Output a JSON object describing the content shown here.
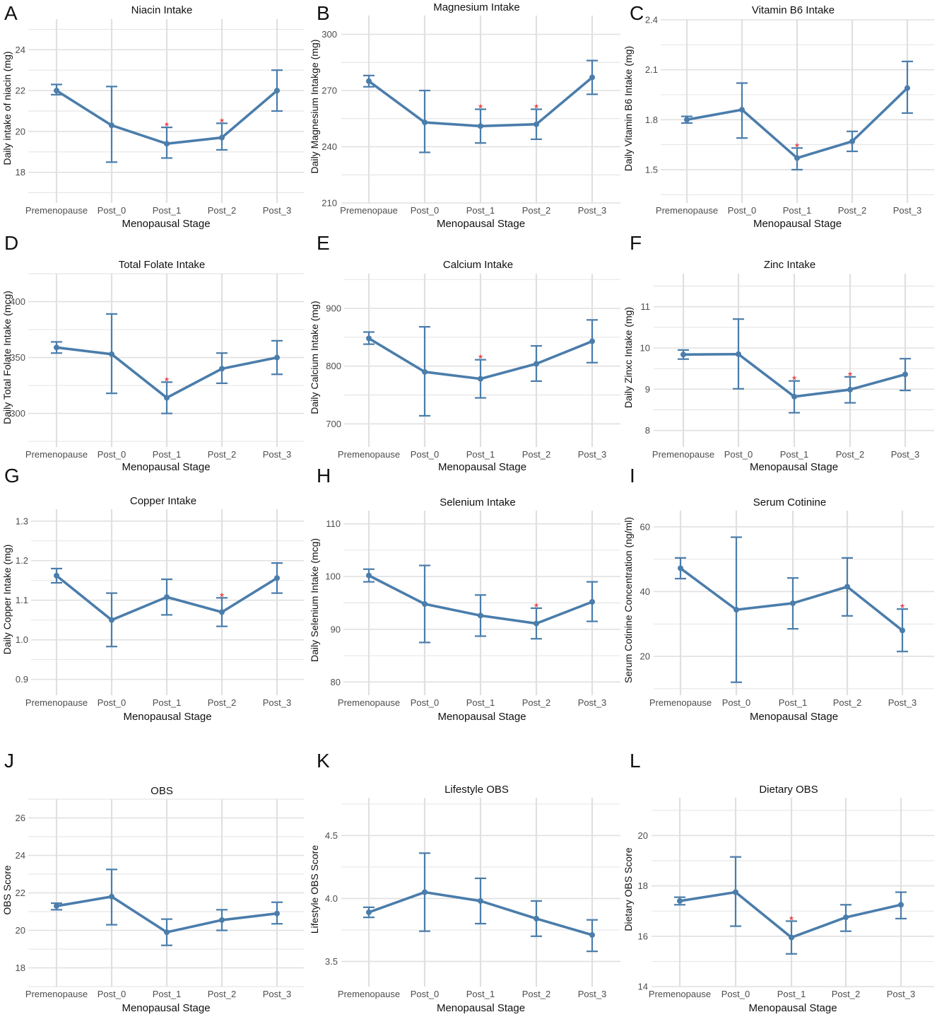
{
  "x_axis_title": "Menopausal Stage",
  "categories": [
    "Premenopause",
    "Post_0",
    "Post_1",
    "Post_2",
    "Post_3"
  ],
  "category_label_overrides": {
    "B": [
      "Premenopaue",
      "Post_0",
      "Post_1",
      "Post_2",
      "Post_3"
    ]
  },
  "series_color": "#4a7dab",
  "star_color": "#e8141b",
  "grid_color": "#e0e0e0",
  "star_symbol": "*",
  "chart_data": [
    {
      "id": "A",
      "type": "line",
      "letter": "A",
      "title": "Niacin Intake",
      "ylabel": "Daily intake of niacin (mg)",
      "xlabel": "Menopausal Stage",
      "ylim": [
        16.5,
        25.5
      ],
      "yticks": [
        18,
        20,
        22,
        24
      ],
      "values": [
        22.0,
        20.3,
        19.4,
        19.7,
        22.0
      ],
      "err_low": [
        21.8,
        18.5,
        18.7,
        19.1,
        21.0
      ],
      "err_high": [
        22.3,
        22.2,
        20.2,
        20.4,
        23.0
      ],
      "significant": [
        false,
        false,
        true,
        true,
        false
      ]
    },
    {
      "id": "B",
      "type": "line",
      "letter": "B",
      "title": "Magnesium Intake",
      "ylabel": "Daily Magnesium Intakge (mg)",
      "xlabel": "Menopausal Stage",
      "ylim": [
        210,
        310
      ],
      "yticks": [
        210,
        240,
        270,
        300
      ],
      "values": [
        275,
        253,
        251,
        252,
        277
      ],
      "err_low": [
        272,
        237,
        242,
        244,
        268
      ],
      "err_high": [
        278,
        270,
        260,
        260,
        286
      ],
      "significant": [
        false,
        false,
        true,
        true,
        false
      ]
    },
    {
      "id": "C",
      "type": "line",
      "letter": "C",
      "title": "Vitamin B6 Intake",
      "ylabel": "Daily Vitamin B6 Intake (mg)",
      "xlabel": "Menopausal Stage",
      "ylim": [
        1.3,
        2.4
      ],
      "yticks": [
        1.5,
        1.8,
        2.1,
        2.4
      ],
      "values": [
        1.8,
        1.86,
        1.57,
        1.67,
        1.99
      ],
      "err_low": [
        1.78,
        1.69,
        1.5,
        1.61,
        1.84
      ],
      "err_high": [
        1.82,
        2.02,
        1.63,
        1.73,
        2.15
      ],
      "significant": [
        false,
        false,
        true,
        false,
        false
      ]
    },
    {
      "id": "D",
      "type": "line",
      "letter": "D",
      "title": "Total Folate Intake",
      "ylabel": "Daily Total Folate Intake (mcg)",
      "xlabel": "Menopausal Stage",
      "ylim": [
        270,
        425
      ],
      "yticks": [
        300,
        350,
        400
      ],
      "values": [
        359,
        353,
        314,
        340,
        350
      ],
      "err_low": [
        354,
        318,
        300,
        327,
        335
      ],
      "err_high": [
        364,
        389,
        328,
        354,
        365
      ],
      "significant": [
        false,
        false,
        true,
        false,
        false
      ]
    },
    {
      "id": "E",
      "type": "line",
      "letter": "E",
      "title": "Calcium Intake",
      "ylabel": "Daily Calcium Intake (mg)",
      "xlabel": "Menopausal Stage",
      "ylim": [
        660,
        960
      ],
      "yticks": [
        700,
        800,
        900
      ],
      "values": [
        848,
        790,
        778,
        804,
        843
      ],
      "err_low": [
        838,
        714,
        745,
        774,
        806
      ],
      "err_high": [
        859,
        868,
        811,
        835,
        880
      ],
      "significant": [
        false,
        false,
        true,
        false,
        false
      ]
    },
    {
      "id": "F",
      "type": "line",
      "letter": "F",
      "title": "Zinc Intake",
      "ylabel": "Daily Zinxc Intake (mg)",
      "xlabel": "Menopausal Stage",
      "ylim": [
        7.6,
        11.8
      ],
      "yticks": [
        8,
        9,
        10,
        11
      ],
      "values": [
        9.84,
        9.85,
        8.82,
        8.99,
        9.36
      ],
      "err_low": [
        9.73,
        9.01,
        8.43,
        8.67,
        8.97
      ],
      "err_high": [
        9.95,
        10.7,
        9.2,
        9.3,
        9.74
      ],
      "significant": [
        false,
        false,
        true,
        true,
        false
      ]
    },
    {
      "id": "G",
      "type": "line",
      "letter": "G",
      "title": "Copper Intake",
      "ylabel": "Daily Copper Intake (mg)",
      "xlabel": "Menopausal Stage",
      "ylim": [
        0.86,
        1.33
      ],
      "yticks": [
        0.9,
        1.0,
        1.1,
        1.2,
        1.3
      ],
      "values": [
        1.162,
        1.05,
        1.108,
        1.07,
        1.156
      ],
      "err_low": [
        1.144,
        0.983,
        1.063,
        1.034,
        1.118
      ],
      "err_high": [
        1.18,
        1.118,
        1.153,
        1.106,
        1.194
      ],
      "significant": [
        false,
        false,
        false,
        true,
        false
      ]
    },
    {
      "id": "H",
      "type": "line",
      "letter": "H",
      "title": "Selenium Intake",
      "ylabel": "Daily Selenium Intake (mcg)",
      "xlabel": "Menopausal Stage",
      "ylim": [
        77.5,
        112.5
      ],
      "yticks": [
        80,
        90,
        100,
        110
      ],
      "values": [
        100.2,
        94.8,
        92.6,
        91.1,
        95.2
      ],
      "err_low": [
        99.0,
        87.5,
        88.7,
        88.2,
        91.5
      ],
      "err_high": [
        101.4,
        102.1,
        96.5,
        94.0,
        99.0
      ],
      "significant": [
        false,
        false,
        false,
        true,
        false
      ]
    },
    {
      "id": "I",
      "type": "line",
      "letter": "I",
      "title": "Serum Cotinine",
      "ylabel": "Serum Cotinine Concentration (ng/ml)",
      "xlabel": "Menopausal Stage",
      "ylim": [
        8,
        65
      ],
      "yticks": [
        20,
        40,
        60
      ],
      "values": [
        47.2,
        34.4,
        36.4,
        41.5,
        28.0
      ],
      "err_low": [
        44.0,
        12.0,
        28.5,
        32.5,
        21.5
      ],
      "err_high": [
        50.4,
        56.8,
        44.2,
        50.4,
        34.6
      ],
      "significant": [
        false,
        false,
        false,
        false,
        true
      ]
    },
    {
      "id": "J",
      "type": "line",
      "letter": "J",
      "title": "OBS",
      "ylabel": "OBS Score",
      "xlabel": "Menopausal Stage",
      "ylim": [
        17,
        27
      ],
      "yticks": [
        18,
        20,
        22,
        24,
        26
      ],
      "values": [
        21.3,
        21.8,
        19.9,
        20.55,
        20.9
      ],
      "err_low": [
        21.1,
        20.3,
        19.2,
        20.0,
        20.35
      ],
      "err_high": [
        21.45,
        23.25,
        20.6,
        21.1,
        21.5
      ],
      "significant": [
        false,
        false,
        false,
        false,
        false
      ]
    },
    {
      "id": "K",
      "type": "line",
      "letter": "K",
      "title": "Lifestyle OBS",
      "ylabel": "Lifestyle OBS Score",
      "xlabel": "Menopausal Stage",
      "ylim": [
        3.3,
        4.8
      ],
      "yticks": [
        3.5,
        4.0,
        4.5
      ],
      "values": [
        3.89,
        4.05,
        3.98,
        3.84,
        3.71
      ],
      "err_low": [
        3.85,
        3.74,
        3.8,
        3.7,
        3.58
      ],
      "err_high": [
        3.93,
        4.36,
        4.16,
        3.98,
        3.83
      ],
      "significant": [
        false,
        false,
        false,
        false,
        false
      ]
    },
    {
      "id": "L",
      "type": "line",
      "letter": "L",
      "title": "Dietary OBS",
      "ylabel": "Dietary OBS Score",
      "xlabel": "Menopausal Stage",
      "ylim": [
        14,
        21.5
      ],
      "yticks": [
        14,
        16,
        18,
        20
      ],
      "values": [
        17.4,
        17.75,
        15.95,
        16.75,
        17.25
      ],
      "err_low": [
        17.25,
        16.4,
        15.3,
        16.2,
        16.7
      ],
      "err_high": [
        17.55,
        19.15,
        16.6,
        17.25,
        17.75
      ],
      "significant": [
        false,
        false,
        true,
        false,
        false
      ]
    }
  ]
}
